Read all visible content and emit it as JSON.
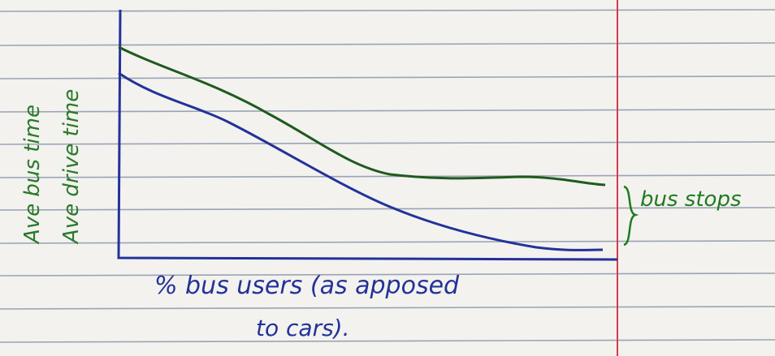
{
  "sketch": {
    "y_axis_labels": [
      "Ave bus time",
      "Ave drive time"
    ],
    "x_axis_label": [
      "% bus users (as apposed",
      "to cars)."
    ],
    "annotation": "bus stops"
  }
}
